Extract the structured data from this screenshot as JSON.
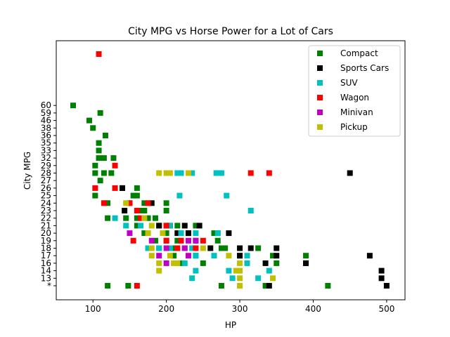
{
  "chart_data": {
    "type": "scatter",
    "title": "City MPG vs Horse Power for a Lot of Cars",
    "xlabel": "HP",
    "ylabel": "City MPG",
    "xlim": [
      50,
      525
    ],
    "xticks": [
      100,
      200,
      300,
      400,
      500
    ],
    "ycategories": [
      "*",
      "13",
      "14",
      "16",
      "17",
      "18",
      "19",
      "20",
      "21",
      "22",
      "23",
      "24",
      "25",
      "26",
      "27",
      "28",
      "29",
      "32",
      "33",
      "35",
      "36",
      "38",
      "46",
      "59",
      "60"
    ],
    "grid": false,
    "legend_position": "top-right",
    "series": [
      {
        "name": "Compact",
        "color": "#008000",
        "points": [
          [
            73,
            "60"
          ],
          [
            110,
            "59"
          ],
          [
            95,
            "46"
          ],
          [
            100,
            "38"
          ],
          [
            117,
            "36"
          ],
          [
            108,
            "35"
          ],
          [
            108,
            "33"
          ],
          [
            108,
            "32"
          ],
          [
            115,
            "32"
          ],
          [
            128,
            "32"
          ],
          [
            103,
            "29"
          ],
          [
            103,
            "28"
          ],
          [
            115,
            "28"
          ],
          [
            125,
            "28"
          ],
          [
            110,
            "27"
          ],
          [
            140,
            "26"
          ],
          [
            160,
            "26"
          ],
          [
            103,
            "25"
          ],
          [
            155,
            "25"
          ],
          [
            160,
            "25"
          ],
          [
            120,
            "24"
          ],
          [
            150,
            "24"
          ],
          [
            170,
            "24"
          ],
          [
            200,
            "24"
          ],
          [
            165,
            "23"
          ],
          [
            170,
            "23"
          ],
          [
            200,
            "23"
          ],
          [
            120,
            "22"
          ],
          [
            145,
            "22"
          ],
          [
            160,
            "22"
          ],
          [
            175,
            "22"
          ],
          [
            185,
            "22"
          ],
          [
            160,
            "21"
          ],
          [
            190,
            "21"
          ],
          [
            200,
            "21"
          ],
          [
            215,
            "21"
          ],
          [
            240,
            "21"
          ],
          [
            170,
            "20"
          ],
          [
            200,
            "20"
          ],
          [
            230,
            "20"
          ],
          [
            265,
            "20"
          ],
          [
            270,
            "20"
          ],
          [
            185,
            "19"
          ],
          [
            200,
            "19"
          ],
          [
            215,
            "19"
          ],
          [
            240,
            "19"
          ],
          [
            270,
            "19"
          ],
          [
            190,
            "18"
          ],
          [
            210,
            "18"
          ],
          [
            225,
            "18"
          ],
          [
            275,
            "18"
          ],
          [
            280,
            "18"
          ],
          [
            325,
            "18"
          ],
          [
            210,
            "17"
          ],
          [
            240,
            "17"
          ],
          [
            300,
            "17"
          ],
          [
            345,
            "17"
          ],
          [
            390,
            "17"
          ],
          [
            220,
            "16"
          ],
          [
            250,
            "16"
          ],
          [
            350,
            "16"
          ],
          [
            390,
            "16"
          ],
          [
            120,
            "*"
          ],
          [
            148,
            "*"
          ],
          [
            275,
            "*"
          ],
          [
            335,
            "*"
          ],
          [
            420,
            "*"
          ]
        ]
      },
      {
        "name": "Sports Cars",
        "color": "#000000",
        "points": [
          [
            450,
            "28"
          ],
          [
            140,
            "26"
          ],
          [
            180,
            "24"
          ],
          [
            143,
            "23"
          ],
          [
            190,
            "21"
          ],
          [
            205,
            "21"
          ],
          [
            225,
            "21"
          ],
          [
            245,
            "21"
          ],
          [
            215,
            "20"
          ],
          [
            230,
            "20"
          ],
          [
            285,
            "20"
          ],
          [
            260,
            "18"
          ],
          [
            300,
            "18"
          ],
          [
            315,
            "18"
          ],
          [
            350,
            "18"
          ],
          [
            300,
            "17"
          ],
          [
            350,
            "17"
          ],
          [
            477,
            "17"
          ],
          [
            335,
            "16"
          ],
          [
            390,
            "16"
          ],
          [
            493,
            "14"
          ],
          [
            493,
            "13"
          ],
          [
            340,
            "*"
          ],
          [
            500,
            "*"
          ]
        ]
      },
      {
        "name": "SUV",
        "color": "#00c0c0",
        "points": [
          [
            215,
            "28"
          ],
          [
            220,
            "28"
          ],
          [
            235,
            "28"
          ],
          [
            268,
            "28"
          ],
          [
            275,
            "28"
          ],
          [
            218,
            "25"
          ],
          [
            282,
            "25"
          ],
          [
            315,
            "23"
          ],
          [
            130,
            "22"
          ],
          [
            145,
            "21"
          ],
          [
            165,
            "21"
          ],
          [
            205,
            "21"
          ],
          [
            220,
            "20"
          ],
          [
            240,
            "20"
          ],
          [
            270,
            "20"
          ],
          [
            175,
            "18"
          ],
          [
            190,
            "18"
          ],
          [
            205,
            "18"
          ],
          [
            215,
            "18"
          ],
          [
            235,
            "18"
          ],
          [
            240,
            "17"
          ],
          [
            265,
            "17"
          ],
          [
            310,
            "17"
          ],
          [
            225,
            "16"
          ],
          [
            310,
            "16"
          ],
          [
            240,
            "14"
          ],
          [
            285,
            "14"
          ],
          [
            340,
            "14"
          ],
          [
            235,
            "13"
          ],
          [
            290,
            "13"
          ],
          [
            325,
            "13"
          ]
        ]
      },
      {
        "name": "Wagon",
        "color": "#ff0000",
        "points": [
          [
            108,
            "*top"
          ],
          [
            315,
            "28"
          ],
          [
            340,
            "28"
          ],
          [
            130,
            "29"
          ],
          [
            103,
            "26"
          ],
          [
            130,
            "26"
          ],
          [
            115,
            "24"
          ],
          [
            150,
            "24"
          ],
          [
            175,
            "24"
          ],
          [
            160,
            "23"
          ],
          [
            165,
            "22"
          ],
          [
            200,
            "21"
          ],
          [
            155,
            "19"
          ],
          [
            200,
            "19"
          ],
          [
            220,
            "19"
          ],
          [
            250,
            "19"
          ],
          [
            215,
            "18"
          ],
          [
            240,
            "18"
          ],
          [
            160,
            "*"
          ]
        ]
      },
      {
        "name": "Minivan",
        "color": "#c000c0",
        "points": [
          [
            150,
            "20"
          ],
          [
            180,
            "19"
          ],
          [
            230,
            "19"
          ],
          [
            240,
            "19"
          ],
          [
            200,
            "18"
          ],
          [
            225,
            "18"
          ],
          [
            190,
            "17"
          ],
          [
            230,
            "17"
          ],
          [
            200,
            "16"
          ]
        ]
      },
      {
        "name": "Pickup",
        "color": "#c0c000",
        "points": [
          [
            190,
            "28"
          ],
          [
            200,
            "28"
          ],
          [
            205,
            "28"
          ],
          [
            230,
            "28"
          ],
          [
            145,
            "24"
          ],
          [
            170,
            "22"
          ],
          [
            180,
            "21"
          ],
          [
            175,
            "20"
          ],
          [
            195,
            "20"
          ],
          [
            180,
            "18"
          ],
          [
            250,
            "18"
          ],
          [
            180,
            "17"
          ],
          [
            205,
            "17"
          ],
          [
            285,
            "17"
          ],
          [
            190,
            "16"
          ],
          [
            210,
            "16"
          ],
          [
            215,
            "16"
          ],
          [
            300,
            "16"
          ],
          [
            190,
            "14"
          ],
          [
            295,
            "14"
          ],
          [
            300,
            "14"
          ],
          [
            300,
            "13"
          ],
          [
            345,
            "13"
          ],
          [
            300,
            "*"
          ]
        ]
      }
    ]
  }
}
